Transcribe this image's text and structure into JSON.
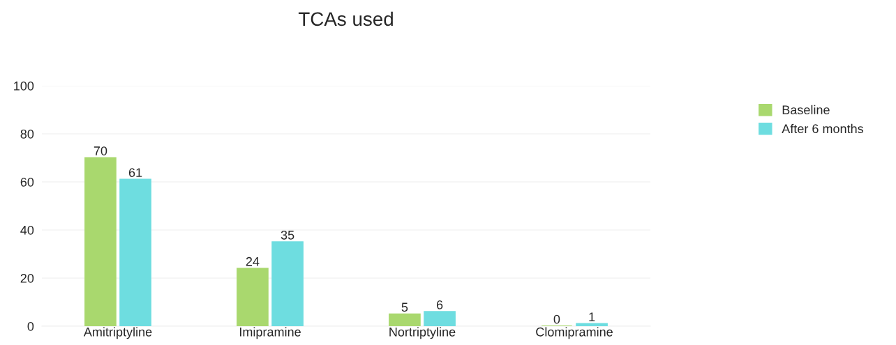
{
  "chart_data": {
    "type": "bar",
    "title": "TCAs used",
    "categories": [
      "Amitriptyline",
      "Imipramine",
      "Nortriptyline",
      "Clomipramine"
    ],
    "series": [
      {
        "name": "Baseline",
        "color": "#a9d86e",
        "values": [
          70,
          24,
          5,
          0
        ]
      },
      {
        "name": "After 6 months",
        "color": "#6edde0",
        "values": [
          61,
          35,
          6,
          1
        ]
      }
    ],
    "ylim": [
      0,
      100
    ],
    "yticks": [
      0,
      20,
      40,
      60,
      80,
      100
    ],
    "grid": "y",
    "legend": "top right",
    "data_labels": true
  }
}
